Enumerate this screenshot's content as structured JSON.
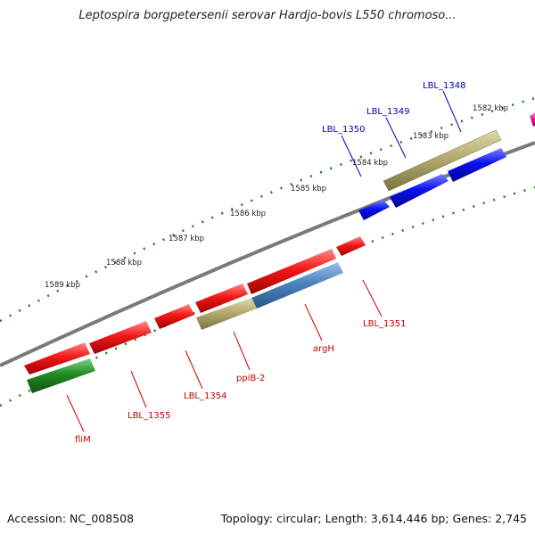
{
  "title": "Leptospira borgpetersenii serovar Hardjo-bovis L550 chromoso...",
  "footer": {
    "accession": "Accession: NC_008508",
    "summary": "Topology: circular; Length: 3,614,446 bp; Genes: 2,745"
  },
  "colors": {
    "backbone": "#7a7a7a",
    "ticks": "#1f7a1f",
    "red_gene": "#f21818",
    "blue_gene": "#0a12f0",
    "olive_gene": "#b4ab70",
    "steelblue_gene": "#4a84bd",
    "green_gene": "#238a23",
    "magenta_gene": "#e0109a",
    "label_red": "#c80000",
    "label_blue": "#0000c0"
  },
  "kbp_ticks": [
    "1582 kbp",
    "1583 kbp",
    "1584 kbp",
    "1585 kbp",
    "1586 kbp",
    "1587 kbp",
    "1588 kbp",
    "1589 kbp"
  ],
  "genes_outer": [
    {
      "id": "LBL_1348",
      "label": "LBL_1348",
      "color": "olive"
    },
    {
      "id": "LBL_1349",
      "label": "LBL_1349",
      "color": "blue"
    },
    {
      "id": "LBL_1350",
      "label": "LBL_1350",
      "color": "blue"
    }
  ],
  "genes_inner": [
    {
      "id": "LBL_1351",
      "label": "LBL_1351",
      "color": "red"
    },
    {
      "id": "argH",
      "label": "argH",
      "color": "red/steelblue"
    },
    {
      "id": "ppiB-2",
      "label": "ppiB-2",
      "color": "olive"
    },
    {
      "id": "LBL_1354",
      "label": "LBL_1354",
      "color": "red"
    },
    {
      "id": "LBL_1355",
      "label": "LBL_1355",
      "color": "red"
    },
    {
      "id": "fliM",
      "label": "fliM",
      "color": "green"
    }
  ]
}
